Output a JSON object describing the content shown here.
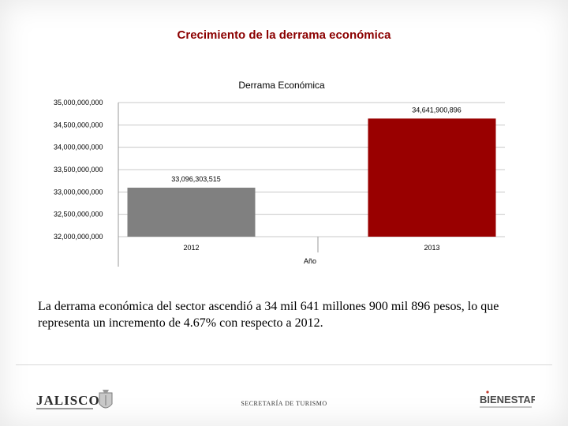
{
  "slide": {
    "title": "Crecimiento de la derrama económica",
    "summary": "La derrama económica del sector ascendió a 34 mil 641 millones 900 mil 896 pesos, lo que representa un incremento de 4.67% con respecto a 2012.",
    "footer_center": "SECRETARÍA DE TURISMO",
    "logo_left_text": "JALISCO",
    "logo_right_text": "BIENESTAR"
  },
  "chart_data": {
    "type": "bar",
    "title": "Derrama Económica",
    "xlabel": "Año",
    "ylabel": "",
    "categories": [
      "2012",
      "2013"
    ],
    "values": [
      33096303515,
      34641900896
    ],
    "data_labels": [
      "33,096,303,515",
      "34,641,900,896"
    ],
    "bar_colors": [
      "#808080",
      "#990000"
    ],
    "ylim": [
      32000000000,
      35000000000
    ],
    "y_ticks": [
      35000000000,
      34500000000,
      34000000000,
      33500000000,
      33000000000,
      32500000000,
      32000000000
    ],
    "y_tick_labels": [
      "35,000,000,000",
      "34,500,000,000",
      "34,000,000,000",
      "33,500,000,000",
      "33,000,000,000",
      "32,500,000,000",
      "32,000,000,000"
    ],
    "grid": true,
    "legend": "none"
  }
}
